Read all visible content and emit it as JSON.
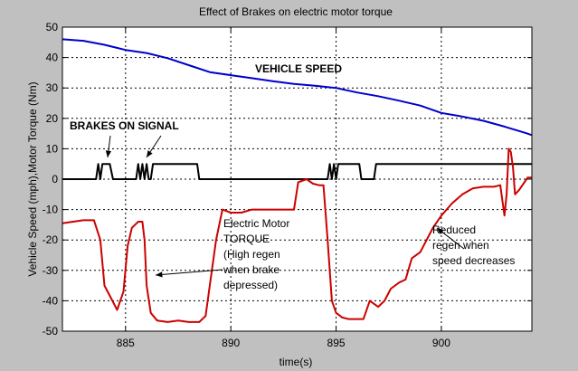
{
  "chart_data": {
    "type": "line",
    "title": "Effect of Brakes on electric motor torque",
    "xlabel": "time(s)",
    "ylabel": "Vehicle Speed (mph),Motor Torque (Nm)",
    "xlim": [
      882,
      904.3
    ],
    "ylim": [
      -50,
      50
    ],
    "xticks": [
      885,
      890,
      895,
      900
    ],
    "yticks": [
      -50,
      -40,
      -30,
      -20,
      -10,
      0,
      10,
      20,
      30,
      40,
      50
    ],
    "grid": true,
    "colors": {
      "speed": "#0000cc",
      "brakes": "#000000",
      "torque": "#cc0000",
      "background": "#c0c0c0",
      "axes": "#ffffff"
    },
    "series": [
      {
        "key": "speed",
        "x": [
          882,
          883,
          884,
          885,
          886,
          887,
          888,
          889,
          890,
          891,
          892,
          893,
          894,
          895,
          896,
          897,
          898,
          899,
          900,
          901,
          902,
          903,
          904,
          904.3
        ],
        "y": [
          46,
          45.5,
          44.2,
          42.5,
          41.5,
          39.8,
          37.5,
          35.2,
          34.2,
          33.2,
          32.2,
          31.3,
          30.7,
          30,
          28.5,
          27.3,
          25.8,
          24.2,
          21.8,
          20.6,
          19.2,
          17.3,
          15.2,
          14.5
        ]
      },
      {
        "key": "brakes",
        "x": [
          882,
          883.6,
          883.7,
          883.8,
          883.9,
          884.1,
          884.25,
          884.4,
          885.5,
          885.6,
          885.7,
          885.8,
          885.9,
          886.0,
          886.1,
          886.2,
          886.3,
          888.4,
          888.5,
          894.6,
          894.7,
          894.8,
          894.9,
          895.0,
          895.1,
          896.1,
          896.2,
          896.8,
          896.9,
          904.3
        ],
        "y": [
          0,
          0,
          5,
          0,
          5,
          5,
          5,
          0,
          0,
          5,
          0,
          5,
          0,
          5,
          0,
          0,
          5,
          5,
          0,
          0,
          5,
          0,
          5,
          0,
          5,
          5,
          0,
          0,
          5,
          5
        ]
      },
      {
        "key": "torque",
        "x": [
          882,
          882.5,
          883,
          883.5,
          883.8,
          884.0,
          884.3,
          884.6,
          884.9,
          885.1,
          885.3,
          885.6,
          885.8,
          885.9,
          886.0,
          886.2,
          886.5,
          887,
          887.5,
          888,
          888.5,
          888.8,
          889.0,
          889.3,
          889.6,
          890,
          890.5,
          891,
          891.5,
          892,
          892.5,
          893,
          893.2,
          893.6,
          893.9,
          894.2,
          894.4,
          894.6,
          894.8,
          895.0,
          895.3,
          895.6,
          896,
          896.3,
          896.6,
          897.0,
          897.3,
          897.6,
          898,
          898.3,
          898.6,
          899,
          899.3,
          899.6,
          900,
          900.5,
          901,
          901.5,
          902,
          902.5,
          902.8,
          903.0,
          903.1,
          903.2,
          903.3,
          903.4,
          903.5,
          903.7,
          903.9,
          904.1,
          904.3
        ],
        "y": [
          -14.5,
          -14,
          -13.5,
          -13.5,
          -20,
          -35,
          -39,
          -43,
          -37,
          -22,
          -16,
          -14,
          -14,
          -20,
          -35,
          -44,
          -46.5,
          -47,
          -46.5,
          -47,
          -47,
          -45,
          -35,
          -20,
          -10,
          -11,
          -11,
          -10,
          -10,
          -10,
          -10,
          -10,
          -1,
          0,
          -1.5,
          -2,
          -2,
          -20,
          -40,
          -44,
          -45.5,
          -46,
          -46,
          -46,
          -40,
          -42,
          -40,
          -36,
          -34,
          -33,
          -26,
          -24,
          -20,
          -16,
          -12,
          -8,
          -5,
          -3,
          -2.5,
          -2.5,
          -2,
          -12,
          -5,
          10,
          9,
          4,
          -5,
          -3.5,
          -1.5,
          0.5,
          0.5
        ]
      }
    ],
    "annotations": [
      {
        "key": "speed",
        "lines": [
          "VEHICLE SPEED"
        ]
      },
      {
        "key": "brakes",
        "lines": [
          "BRAKES ON SIGNAL"
        ]
      },
      {
        "key": "torque",
        "lines": [
          "Electric Motor",
          "TORQUE",
          "(High regen",
          "when brake",
          "depressed)"
        ]
      },
      {
        "key": "reduced",
        "lines": [
          "Reduced",
          "regen when",
          "speed decreases"
        ]
      }
    ]
  }
}
